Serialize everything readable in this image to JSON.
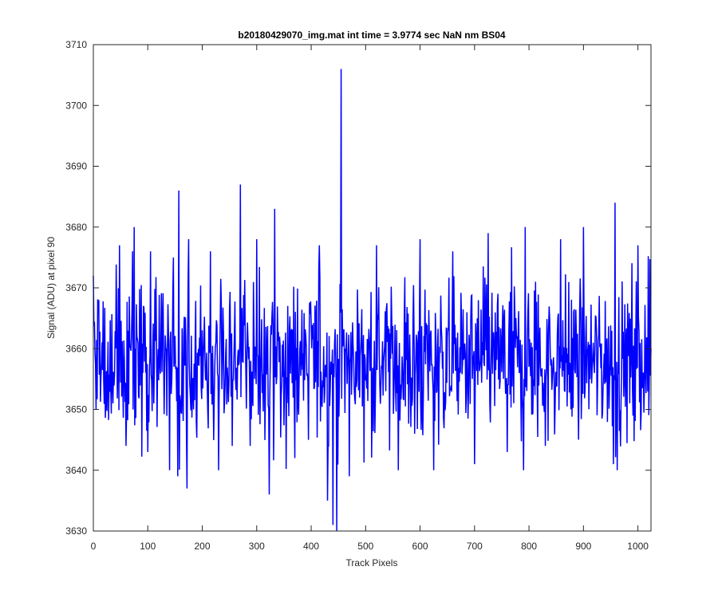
{
  "chart_data": {
    "type": "line",
    "title": "b20180429070_img.mat int time = 3.9774 sec  NaN nm BS04",
    "xlabel": "Track Pixels",
    "ylabel": "Signal (ADU) at pixel 90",
    "xlim": [
      0,
      1024
    ],
    "ylim": [
      3630,
      3710
    ],
    "xticks": [
      "0",
      "100",
      "200",
      "300",
      "400",
      "500",
      "600",
      "700",
      "800",
      "900",
      "1000"
    ],
    "yticks": [
      "3630",
      "3640",
      "3650",
      "3660",
      "3670",
      "3680",
      "3690",
      "3700",
      "3710"
    ],
    "grid": false,
    "series": [
      {
        "color": "#0000ff",
        "description": "Noisy signal fluctuating around ~3658 ADU (typical range ~3645-3675), with notable spikes at pixel 455 (3706), 270 (3687), 157 (3686), 958 (3684), and dips at 447 (3630), 440 (3631), 430 (3635).",
        "baseline": 3658,
        "x": [
          0,
          5,
          10,
          48,
          60,
          72,
          75,
          100,
          105,
          140,
          147,
          155,
          157,
          172,
          175,
          210,
          215,
          230,
          255,
          270,
          288,
          300,
          323,
          333,
          370,
          395,
          415,
          430,
          440,
          447,
          455,
          470,
          520,
          560,
          590,
          600,
          625,
          660,
          700,
          725,
          760,
          790,
          793,
          830,
          858,
          900,
          955,
          958,
          962,
          1000,
          1024
        ],
        "y": [
          3672,
          3650,
          3668,
          3677,
          3644,
          3676,
          3680,
          3643,
          3676,
          3640,
          3675,
          3639,
          3686,
          3637,
          3678,
          3650,
          3676,
          3640,
          3644,
          3687,
          3644,
          3678,
          3636,
          3683,
          3642,
          3645,
          3677,
          3635,
          3631,
          3630,
          3706,
          3639,
          3677,
          3640,
          3646,
          3678,
          3640,
          3676,
          3641,
          3679,
          3643,
          3640,
          3680,
          3644,
          3678,
          3680,
          3641,
          3684,
          3640,
          3677,
          3660
        ]
      }
    ]
  }
}
